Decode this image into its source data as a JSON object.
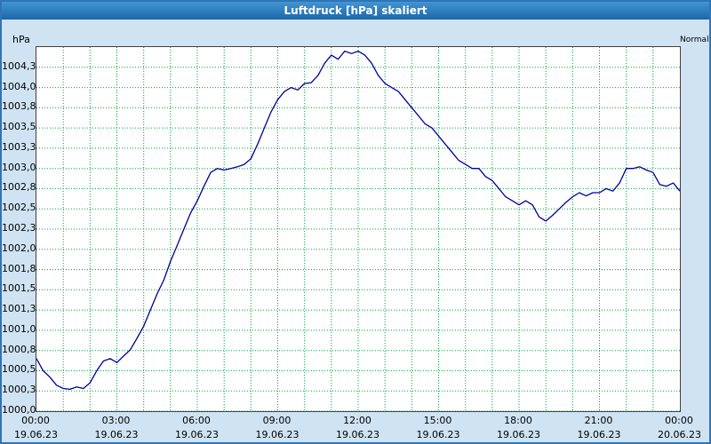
{
  "title": "Luftdruck [hPa] skaliert",
  "y_axis": {
    "unit": "hPa"
  },
  "right_label": "Normal",
  "colors": {
    "line": "#000099",
    "grid": "#00a33d",
    "titlebar": "#1b67a8",
    "background": "#cfe3f2",
    "plot_background": "#ffffff"
  },
  "chart_data": {
    "type": "line",
    "title": "Luftdruck [hPa] skaliert",
    "ylabel": "hPa",
    "xlabel": "",
    "legend": [
      "Normal"
    ],
    "grid": true,
    "interval_minutes": 15,
    "xlim": [
      0,
      24
    ],
    "ylim": [
      1000.0,
      1004.5
    ],
    "x_grid_interval_hours": 1,
    "x_ticks": [
      {
        "hour": 0,
        "time": "00:00",
        "date": "19.06.23"
      },
      {
        "hour": 3,
        "time": "03:00",
        "date": "19.06.23"
      },
      {
        "hour": 6,
        "time": "06:00",
        "date": "19.06.23"
      },
      {
        "hour": 9,
        "time": "09:00",
        "date": "19.06.23"
      },
      {
        "hour": 12,
        "time": "12:00",
        "date": "19.06.23"
      },
      {
        "hour": 15,
        "time": "15:00",
        "date": "19.06.23"
      },
      {
        "hour": 18,
        "time": "18:00",
        "date": "19.06.23"
      },
      {
        "hour": 21,
        "time": "21:00",
        "date": "19.06.23"
      },
      {
        "hour": 24,
        "time": "00:00",
        "date": "20.06.23"
      }
    ],
    "y_ticks": [
      {
        "value": 1004.25,
        "label": "1004,3"
      },
      {
        "value": 1004.0,
        "label": "1004,0"
      },
      {
        "value": 1003.75,
        "label": "1003,8"
      },
      {
        "value": 1003.5,
        "label": "1003,5"
      },
      {
        "value": 1003.25,
        "label": "1003,3"
      },
      {
        "value": 1003.0,
        "label": "1003,0"
      },
      {
        "value": 1002.75,
        "label": "1002,8"
      },
      {
        "value": 1002.5,
        "label": "1002,5"
      },
      {
        "value": 1002.25,
        "label": "1002,3"
      },
      {
        "value": 1002.0,
        "label": "1002,0"
      },
      {
        "value": 1001.75,
        "label": "1001,8"
      },
      {
        "value": 1001.5,
        "label": "1001,5"
      },
      {
        "value": 1001.25,
        "label": "1001,3"
      },
      {
        "value": 1001.0,
        "label": "1001,0"
      },
      {
        "value": 1000.75,
        "label": "1000,8"
      },
      {
        "value": 1000.5,
        "label": "1000,5"
      },
      {
        "value": 1000.25,
        "label": "1000,3"
      },
      {
        "value": 1000.0,
        "label": "1000,0"
      }
    ],
    "values": [
      1000.65,
      1000.5,
      1000.42,
      1000.32,
      1000.28,
      1000.27,
      1000.3,
      1000.28,
      1000.35,
      1000.5,
      1000.62,
      1000.65,
      1000.6,
      1000.68,
      1000.76,
      1000.9,
      1001.05,
      1001.25,
      1001.45,
      1001.62,
      1001.85,
      1002.05,
      1002.25,
      1002.45,
      1002.6,
      1002.78,
      1002.95,
      1003.0,
      1002.98,
      1003.0,
      1003.02,
      1003.05,
      1003.12,
      1003.3,
      1003.5,
      1003.7,
      1003.85,
      1003.95,
      1004.0,
      1003.97,
      1004.05,
      1004.06,
      1004.15,
      1004.3,
      1004.4,
      1004.35,
      1004.45,
      1004.42,
      1004.45,
      1004.4,
      1004.3,
      1004.15,
      1004.05,
      1004.0,
      1003.95,
      1003.85,
      1003.75,
      1003.65,
      1003.55,
      1003.5,
      1003.4,
      1003.3,
      1003.2,
      1003.1,
      1003.05,
      1003.0,
      1003.0,
      1002.9,
      1002.85,
      1002.75,
      1002.65,
      1002.6,
      1002.55,
      1002.6,
      1002.55,
      1002.4,
      1002.35,
      1002.42,
      1002.5,
      1002.58,
      1002.65,
      1002.7,
      1002.66,
      1002.7,
      1002.7,
      1002.75,
      1002.72,
      1002.82,
      1003.0,
      1003.0,
      1003.02,
      1002.98,
      1002.95,
      1002.8,
      1002.78,
      1002.82,
      1002.72
    ]
  }
}
